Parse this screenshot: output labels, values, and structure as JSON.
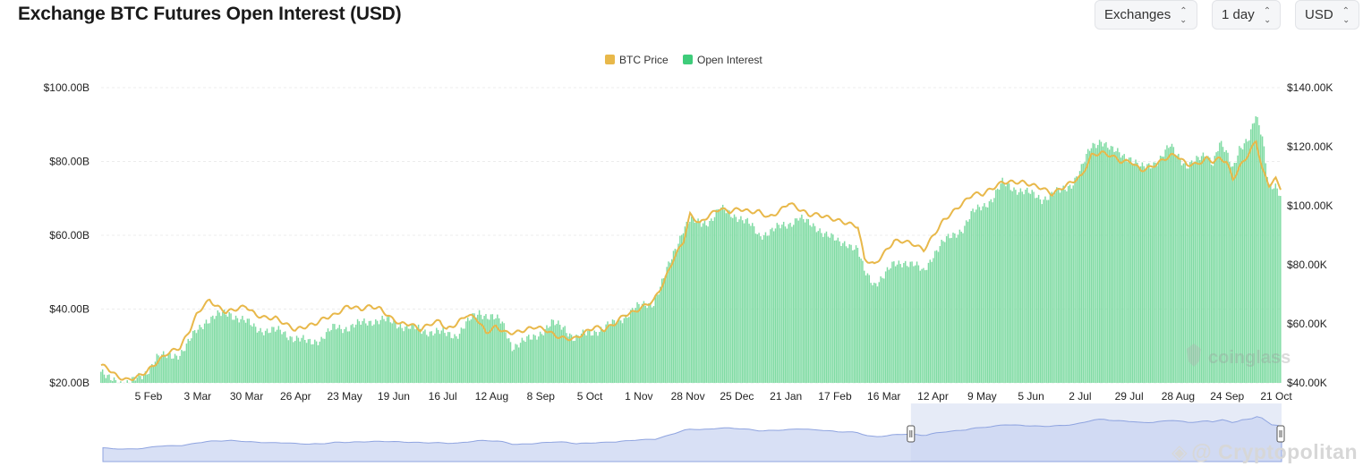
{
  "header": {
    "title": "Exchange BTC Futures Open Interest (USD)",
    "controls": [
      {
        "label": "Exchanges",
        "icon": "sort-updown-icon"
      },
      {
        "label": "1 day",
        "icon": "sort-updown-icon"
      },
      {
        "label": "USD",
        "icon": "sort-updown-icon"
      }
    ]
  },
  "watermarks": {
    "brand": "coinglass",
    "source": "@ Cryptopolitan"
  },
  "chart_data": {
    "type": "bar+line",
    "legend": [
      {
        "name": "BTC Price",
        "color": "#e8b84a",
        "kind": "line"
      },
      {
        "name": "Open Interest",
        "color": "#3ecc7a",
        "kind": "bar"
      }
    ],
    "legend_position": "top-center",
    "x_ticks": [
      "5 Feb",
      "3 Mar",
      "30 Mar",
      "26 Apr",
      "23 May",
      "19 Jun",
      "16 Jul",
      "12 Aug",
      "8 Sep",
      "5 Oct",
      "1 Nov",
      "28 Nov",
      "25 Dec",
      "21 Jan",
      "17 Feb",
      "16 Mar",
      "12 Apr",
      "9 May",
      "5 Jun",
      "2 Jul",
      "29 Jul",
      "28 Aug",
      "24 Sep",
      "21 Oct"
    ],
    "y_left": {
      "ticks": [
        "$20.00B",
        "$40.00B",
        "$60.00B",
        "$80.00B",
        "$100.00B"
      ],
      "min": 20,
      "max": 100,
      "unit": "B USD"
    },
    "y_right": {
      "ticks": [
        "$40.00K",
        "$60.00K",
        "$80.00K",
        "$100.00K",
        "$120.00K",
        "$140.00K"
      ],
      "min": 40,
      "max": 140,
      "unit": "K USD"
    },
    "series": [
      {
        "name": "Open Interest",
        "axis": "left",
        "points": [
          [
            0,
            23
          ],
          [
            4,
            21
          ],
          [
            14,
            20
          ],
          [
            20,
            20.5
          ],
          [
            26,
            22
          ],
          [
            34,
            27
          ],
          [
            40,
            27
          ],
          [
            48,
            28
          ],
          [
            52,
            30
          ],
          [
            58,
            34
          ],
          [
            64,
            37
          ],
          [
            70,
            38
          ],
          [
            78,
            39
          ],
          [
            86,
            37
          ],
          [
            94,
            35
          ],
          [
            102,
            34
          ],
          [
            110,
            34
          ],
          [
            118,
            32
          ],
          [
            126,
            31
          ],
          [
            134,
            32
          ],
          [
            142,
            35
          ],
          [
            150,
            35
          ],
          [
            158,
            36
          ],
          [
            166,
            37
          ],
          [
            172,
            37
          ],
          [
            180,
            36
          ],
          [
            188,
            35
          ],
          [
            196,
            34
          ],
          [
            204,
            34
          ],
          [
            210,
            33
          ],
          [
            216,
            33
          ],
          [
            222,
            36
          ],
          [
            230,
            39
          ],
          [
            238,
            38
          ],
          [
            244,
            36
          ],
          [
            250,
            30
          ],
          [
            256,
            31
          ],
          [
            262,
            32
          ],
          [
            268,
            34
          ],
          [
            274,
            36
          ],
          [
            282,
            35
          ],
          [
            288,
            32
          ],
          [
            294,
            33
          ],
          [
            300,
            34
          ],
          [
            306,
            35
          ],
          [
            312,
            36
          ],
          [
            318,
            38
          ],
          [
            324,
            40
          ],
          [
            330,
            41
          ],
          [
            336,
            42
          ],
          [
            342,
            48
          ],
          [
            348,
            55
          ],
          [
            354,
            62
          ],
          [
            358,
            64
          ],
          [
            364,
            63
          ],
          [
            370,
            64
          ],
          [
            376,
            67
          ],
          [
            382,
            66
          ],
          [
            388,
            65
          ],
          [
            394,
            63
          ],
          [
            400,
            60
          ],
          [
            406,
            61
          ],
          [
            412,
            62
          ],
          [
            418,
            63
          ],
          [
            424,
            65
          ],
          [
            430,
            63
          ],
          [
            436,
            62
          ],
          [
            442,
            60
          ],
          [
            448,
            58
          ],
          [
            454,
            58
          ],
          [
            460,
            56
          ],
          [
            464,
            50
          ],
          [
            470,
            47
          ],
          [
            476,
            49
          ],
          [
            482,
            52
          ],
          [
            488,
            53
          ],
          [
            494,
            52
          ],
          [
            500,
            50
          ],
          [
            506,
            55
          ],
          [
            512,
            58
          ],
          [
            518,
            60
          ],
          [
            524,
            62
          ],
          [
            530,
            66
          ],
          [
            536,
            68
          ],
          [
            542,
            70
          ],
          [
            548,
            74
          ],
          [
            554,
            73
          ],
          [
            560,
            72
          ],
          [
            566,
            71
          ],
          [
            572,
            70
          ],
          [
            578,
            71
          ],
          [
            584,
            72
          ],
          [
            590,
            74
          ],
          [
            596,
            78
          ],
          [
            602,
            84
          ],
          [
            608,
            86
          ],
          [
            614,
            83
          ],
          [
            620,
            82
          ],
          [
            626,
            81
          ],
          [
            632,
            78
          ],
          [
            638,
            79
          ],
          [
            644,
            81
          ],
          [
            650,
            84
          ],
          [
            654,
            82
          ],
          [
            660,
            79
          ],
          [
            666,
            80
          ],
          [
            672,
            82
          ],
          [
            676,
            80
          ],
          [
            680,
            85
          ],
          [
            684,
            82
          ],
          [
            688,
            78
          ],
          [
            692,
            84
          ],
          [
            698,
            86
          ],
          [
            702,
            92
          ],
          [
            706,
            87
          ],
          [
            710,
            74
          ],
          [
            714,
            73
          ],
          [
            717,
            70
          ]
        ]
      },
      {
        "name": "BTC Price",
        "axis": "right",
        "points": [
          [
            0,
            46
          ],
          [
            4,
            45
          ],
          [
            10,
            42
          ],
          [
            16,
            41
          ],
          [
            22,
            42
          ],
          [
            28,
            44
          ],
          [
            34,
            47
          ],
          [
            40,
            50
          ],
          [
            48,
            52
          ],
          [
            54,
            58
          ],
          [
            58,
            63
          ],
          [
            62,
            66
          ],
          [
            66,
            68
          ],
          [
            70,
            66
          ],
          [
            76,
            64
          ],
          [
            82,
            65
          ],
          [
            88,
            66
          ],
          [
            94,
            63
          ],
          [
            100,
            62
          ],
          [
            106,
            62
          ],
          [
            112,
            60
          ],
          [
            118,
            58
          ],
          [
            124,
            59
          ],
          [
            130,
            60
          ],
          [
            136,
            62
          ],
          [
            142,
            63
          ],
          [
            150,
            66
          ],
          [
            158,
            65
          ],
          [
            164,
            66
          ],
          [
            170,
            65
          ],
          [
            176,
            62
          ],
          [
            182,
            60
          ],
          [
            188,
            60
          ],
          [
            194,
            58
          ],
          [
            200,
            60
          ],
          [
            206,
            61
          ],
          [
            210,
            58
          ],
          [
            216,
            60
          ],
          [
            222,
            63
          ],
          [
            228,
            62
          ],
          [
            234,
            57
          ],
          [
            240,
            59
          ],
          [
            246,
            57
          ],
          [
            252,
            57
          ],
          [
            258,
            58
          ],
          [
            264,
            59
          ],
          [
            270,
            58
          ],
          [
            276,
            56
          ],
          [
            282,
            55
          ],
          [
            288,
            55
          ],
          [
            294,
            57
          ],
          [
            300,
            59
          ],
          [
            306,
            58
          ],
          [
            312,
            60
          ],
          [
            318,
            63
          ],
          [
            324,
            64
          ],
          [
            330,
            66
          ],
          [
            336,
            68
          ],
          [
            342,
            74
          ],
          [
            348,
            82
          ],
          [
            354,
            88
          ],
          [
            358,
            97
          ],
          [
            364,
            94
          ],
          [
            370,
            97
          ],
          [
            376,
            99
          ],
          [
            382,
            98
          ],
          [
            388,
            99
          ],
          [
            394,
            98
          ],
          [
            400,
            98
          ],
          [
            406,
            96
          ],
          [
            412,
            98
          ],
          [
            418,
            101
          ],
          [
            424,
            99
          ],
          [
            430,
            97
          ],
          [
            436,
            97
          ],
          [
            442,
            96
          ],
          [
            448,
            95
          ],
          [
            454,
            94
          ],
          [
            460,
            93
          ],
          [
            464,
            82
          ],
          [
            470,
            80
          ],
          [
            476,
            84
          ],
          [
            482,
            88
          ],
          [
            488,
            88
          ],
          [
            494,
            87
          ],
          [
            500,
            85
          ],
          [
            506,
            90
          ],
          [
            512,
            95
          ],
          [
            518,
            98
          ],
          [
            524,
            101
          ],
          [
            530,
            104
          ],
          [
            536,
            104
          ],
          [
            542,
            106
          ],
          [
            548,
            108
          ],
          [
            554,
            108
          ],
          [
            560,
            108
          ],
          [
            566,
            107
          ],
          [
            572,
            106
          ],
          [
            578,
            104
          ],
          [
            584,
            106
          ],
          [
            590,
            108
          ],
          [
            596,
            110
          ],
          [
            602,
            117
          ],
          [
            608,
            118
          ],
          [
            614,
            117
          ],
          [
            620,
            115
          ],
          [
            626,
            115
          ],
          [
            632,
            112
          ],
          [
            638,
            113
          ],
          [
            644,
            115
          ],
          [
            650,
            117
          ],
          [
            654,
            117
          ],
          [
            660,
            114
          ],
          [
            666,
            114
          ],
          [
            672,
            116
          ],
          [
            676,
            115
          ],
          [
            680,
            116
          ],
          [
            684,
            115
          ],
          [
            688,
            109
          ],
          [
            692,
            113
          ],
          [
            698,
            118
          ],
          [
            702,
            122
          ],
          [
            706,
            112
          ],
          [
            710,
            107
          ],
          [
            714,
            109
          ],
          [
            717,
            106
          ]
        ]
      }
    ],
    "navigator": {
      "selected_range": "12 Apr – 21 Oct"
    }
  }
}
